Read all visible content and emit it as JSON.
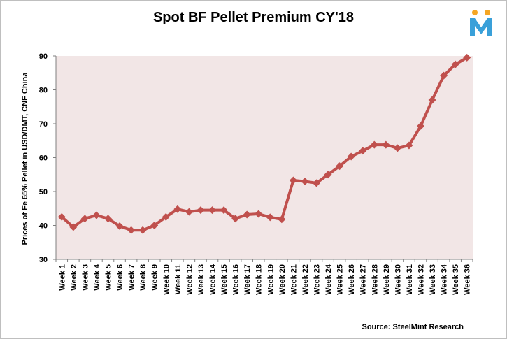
{
  "chart_data": {
    "type": "line",
    "title": "Spot BF Pellet Premium CY'18",
    "ylabel": "Prices of Fe 65% Pellet in USD/DMT,  CNF China",
    "xlabel": "",
    "source": "Source: SteelMint Research",
    "ylim": [
      30,
      90
    ],
    "yticks": [
      30,
      40,
      50,
      60,
      70,
      80,
      90
    ],
    "grid": false,
    "legend": "none",
    "categories": [
      "Week 1",
      "Week 2",
      "Week 3",
      "Week 4",
      "Week 5",
      "Week 6",
      "Week 7",
      "Week 8",
      "Week 9",
      "Week 10",
      "Week 11",
      "Week 12",
      "Week 13",
      "Week 14",
      "Week 15",
      "Week 16",
      "Week 17",
      "Week 18",
      "Week 19",
      "Week 20",
      "Week 21",
      "Week 22",
      "Week 23",
      "Week 24",
      "Week 25",
      "Week 26",
      "Week 27",
      "Week 28",
      "Week 29",
      "Week 30",
      "Week 31",
      "Week 32",
      "Week 33",
      "Week 34",
      "Week 35",
      "Week 36"
    ],
    "series": [
      {
        "values": [
          42.5,
          39.5,
          42,
          43,
          42,
          39.8,
          38.6,
          38.6,
          40,
          42.5,
          44.8,
          44,
          44.5,
          44.5,
          44.5,
          42,
          43.2,
          43.4,
          42.4,
          41.8,
          53.3,
          53,
          52.5,
          55,
          57.5,
          60.3,
          62,
          63.8,
          63.8,
          62.8,
          63.6,
          69.3,
          77,
          84.2,
          87.5,
          89.5
        ],
        "color": "#c0504d"
      }
    ],
    "colors": {
      "plot_background": "#f2e6e6",
      "line": "#c0504d",
      "logo_m": "#3aa0d9",
      "logo_dots": "#f5a623"
    }
  }
}
